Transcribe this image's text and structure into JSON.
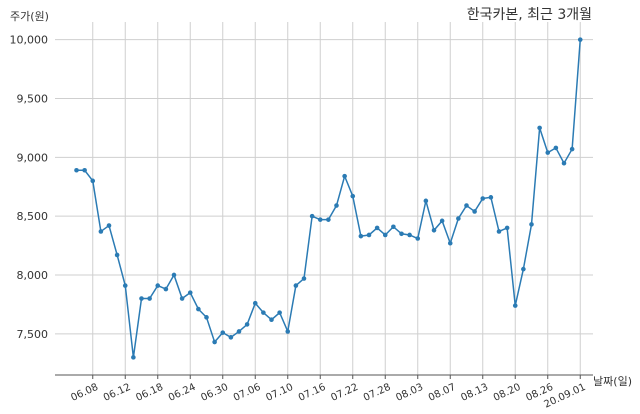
{
  "chart_data": {
    "type": "line",
    "title": "한국카본, 최근 3개월",
    "ylabel": "주가(원)",
    "xlabel": "날짜(일)",
    "ylim": [
      7150,
      10150
    ],
    "y_ticks": [
      7500,
      8000,
      8500,
      9000,
      9500,
      10000
    ],
    "y_tick_labels": [
      "7,500",
      "8,000",
      "8,500",
      "9,000",
      "9,500",
      "10,000"
    ],
    "x_tick_labels": [
      "06.08",
      "06.12",
      "06.18",
      "06.24",
      "06.30",
      "07.06",
      "07.10",
      "07.16",
      "07.22",
      "07.28",
      "08.03",
      "08.07",
      "08.13",
      "08.20",
      "08.26",
      "20.09.01"
    ],
    "x_tick_index": [
      2,
      6,
      10,
      14,
      18,
      22,
      26,
      30,
      34,
      38,
      42,
      46,
      50,
      54,
      58,
      62
    ],
    "color": "#2b7bb4",
    "grid": true,
    "series": [
      {
        "values": [
          8890,
          8890,
          8800,
          8370,
          8420,
          8170,
          7910,
          7300,
          7800,
          7800,
          7910,
          7880,
          8000,
          7800,
          7850,
          7710,
          7640,
          7430,
          7510,
          7470,
          7520,
          7580,
          7760,
          7680,
          7620,
          7680,
          7520,
          7910,
          7970,
          8500,
          8470,
          8470,
          8590,
          8840,
          8670,
          8330,
          8340,
          8400,
          8340,
          8410,
          8350,
          8340,
          8310,
          8630,
          8380,
          8460,
          8270,
          8480,
          8590,
          8540,
          8650,
          8660,
          8370,
          8400,
          7740,
          8050,
          8430,
          9250,
          9040,
          9080,
          8950,
          9070,
          10000
        ]
      }
    ]
  }
}
